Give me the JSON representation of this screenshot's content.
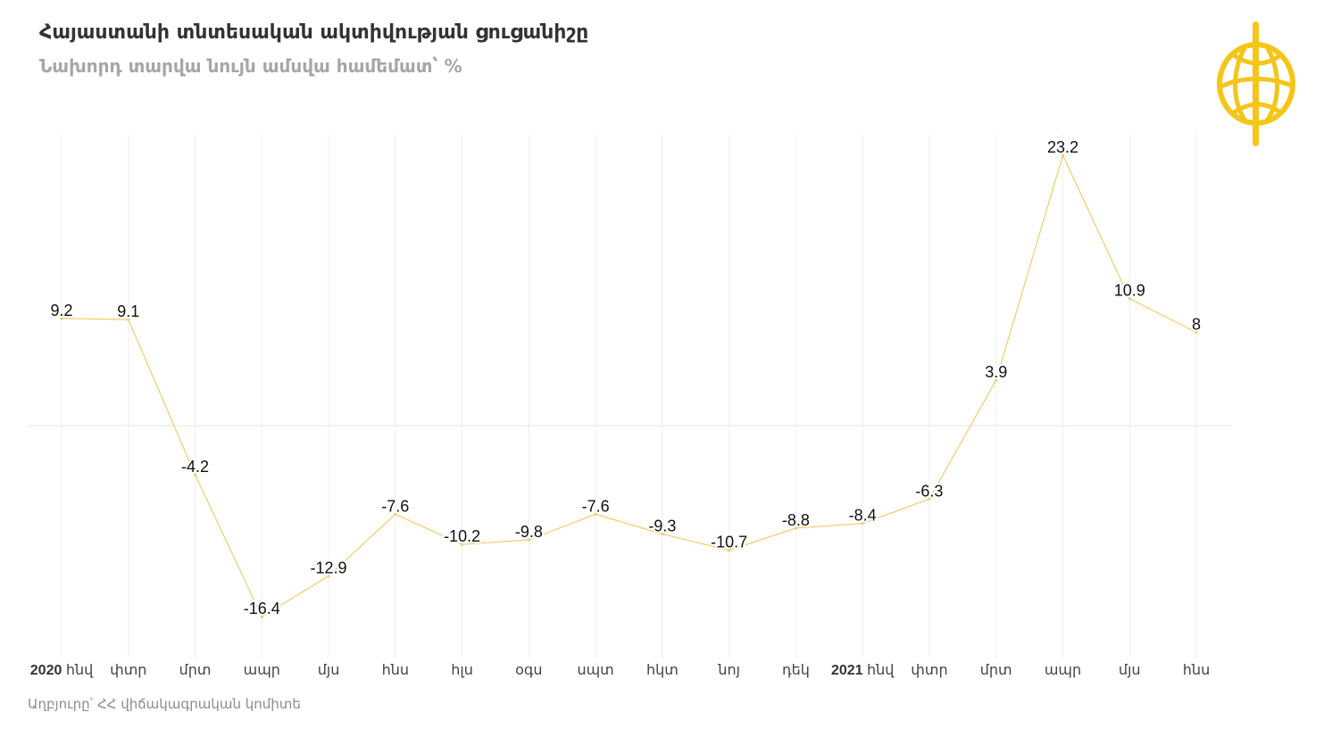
{
  "header": {
    "title": "Հայաստանի տնտեսական ակտիվության ցուցանիշը",
    "subtitle": "Նախորդ տարվա նույն ամսվա համեմատ՝ %"
  },
  "footer": {
    "source": "Աղբյուրը՝ ՀՀ վիճակագրական կոմիտե"
  },
  "logo": {
    "icon": "globe-logo-icon",
    "color": "#f5c518"
  },
  "colors": {
    "line": "#f2cc6b",
    "grid": "#eeeeee",
    "zero_line": "#e9e9e9"
  },
  "chart_data": {
    "type": "line",
    "categories": [
      {
        "year": "2020",
        "month": "հնվ"
      },
      {
        "year": "",
        "month": "փտր"
      },
      {
        "year": "",
        "month": "մրտ"
      },
      {
        "year": "",
        "month": "ապր"
      },
      {
        "year": "",
        "month": "մյս"
      },
      {
        "year": "",
        "month": "հնս"
      },
      {
        "year": "",
        "month": "հլս"
      },
      {
        "year": "",
        "month": "օգս"
      },
      {
        "year": "",
        "month": "սպտ"
      },
      {
        "year": "",
        "month": "հկտ"
      },
      {
        "year": "",
        "month": "նոյ"
      },
      {
        "year": "",
        "month": "դեկ"
      },
      {
        "year": "2021",
        "month": "հնվ"
      },
      {
        "year": "",
        "month": "փտր"
      },
      {
        "year": "",
        "month": "մրտ"
      },
      {
        "year": "",
        "month": "ապր"
      },
      {
        "year": "",
        "month": "մյս"
      },
      {
        "year": "",
        "month": "հնս"
      }
    ],
    "series": [
      {
        "values": [
          9.2,
          9.1,
          -4.2,
          -16.4,
          -12.9,
          -7.6,
          -10.2,
          -9.8,
          -7.6,
          -9.3,
          -10.7,
          -8.8,
          -8.4,
          -6.3,
          3.9,
          23.2,
          10.9,
          8
        ]
      }
    ],
    "labels": [
      "9.2",
      "9.1",
      "-4.2",
      "-16.4",
      "-12.9",
      "-7.6",
      "-10.2",
      "-9.8",
      "-7.6",
      "-9.3",
      "-10.7",
      "-8.8",
      "-8.4",
      "-6.3",
      "3.9",
      "23.2",
      "10.9",
      "8"
    ],
    "ylim": [
      -20,
      25
    ],
    "xlabel": "",
    "ylabel": "",
    "grid": "vertical",
    "zero_line": true,
    "legend": "none"
  }
}
